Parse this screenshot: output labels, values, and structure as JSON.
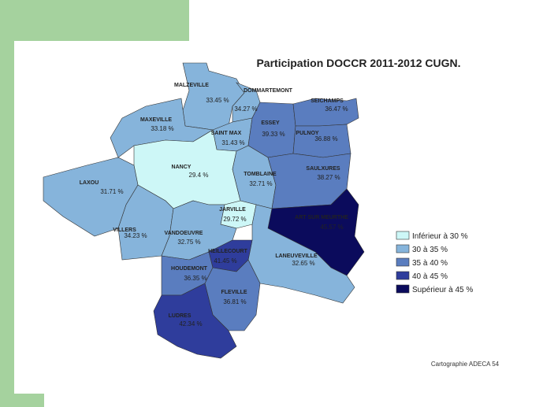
{
  "title": "Participation DOCCR 2011-2012 CUGN.",
  "credit": "Cartographie ADECA 54",
  "legend": [
    {
      "label": "Inférieur à 30 %",
      "color": "#cdf7f7"
    },
    {
      "label": "30 à 35 %",
      "color": "#86b4db"
    },
    {
      "label": "35 à 40 %",
      "color": "#5a7dbf"
    },
    {
      "label": "40 à 45 %",
      "color": "#2f3d9c"
    },
    {
      "label": "Supérieur à 45 %",
      "color": "#0b0b5c"
    }
  ],
  "regions": [
    {
      "name": "MALZEVILLE",
      "label": "33.45 %",
      "color": "#86b4db"
    },
    {
      "name": "DOMMARTEMONT",
      "label": "34.27 %",
      "color": "#86b4db"
    },
    {
      "name": "MAXEVILLE",
      "label": "33.18 %",
      "color": "#86b4db"
    },
    {
      "name": "SAINT MAX",
      "label": "31.43 %",
      "color": "#86b4db"
    },
    {
      "name": "ESSEY",
      "label": "39.33 %",
      "color": "#5a7dbf"
    },
    {
      "name": "SEICHAMPS",
      "label": "36.47 %",
      "color": "#5a7dbf"
    },
    {
      "name": "PULNOY",
      "label": "36.88 %",
      "color": "#5a7dbf"
    },
    {
      "name": "NANCY",
      "label": "29.4 %",
      "color": "#cdf7f7"
    },
    {
      "name": "TOMBLAINE",
      "label": "32.71 %",
      "color": "#86b4db"
    },
    {
      "name": "SAULXURES",
      "label": "38.27 %",
      "color": "#5a7dbf"
    },
    {
      "name": "LAXOU",
      "label": "31.71 %",
      "color": "#86b4db"
    },
    {
      "name": "JARVILLE",
      "label": "29.72 %",
      "color": "#cdf7f7"
    },
    {
      "name": "ART SUR MEURTHE",
      "label": "45.57 %",
      "color": "#0b0b5c"
    },
    {
      "name": "VILLERS",
      "label": "34.23 %",
      "color": "#86b4db"
    },
    {
      "name": "VANDOEUVRE",
      "label": "32.75 %",
      "color": "#86b4db"
    },
    {
      "name": "LANEUVEVILLE",
      "label": "32.65 %",
      "color": "#86b4db"
    },
    {
      "name": "HEILLECOURT",
      "label": "41.45 %",
      "color": "#2f3d9c"
    },
    {
      "name": "HOUDEMONT",
      "label": "36.35 %",
      "color": "#5a7dbf"
    },
    {
      "name": "FLEVILLE",
      "label": "36.81 %",
      "color": "#5a7dbf"
    },
    {
      "name": "LUDRES",
      "label": "42.34 %",
      "color": "#2f3d9c"
    }
  ]
}
